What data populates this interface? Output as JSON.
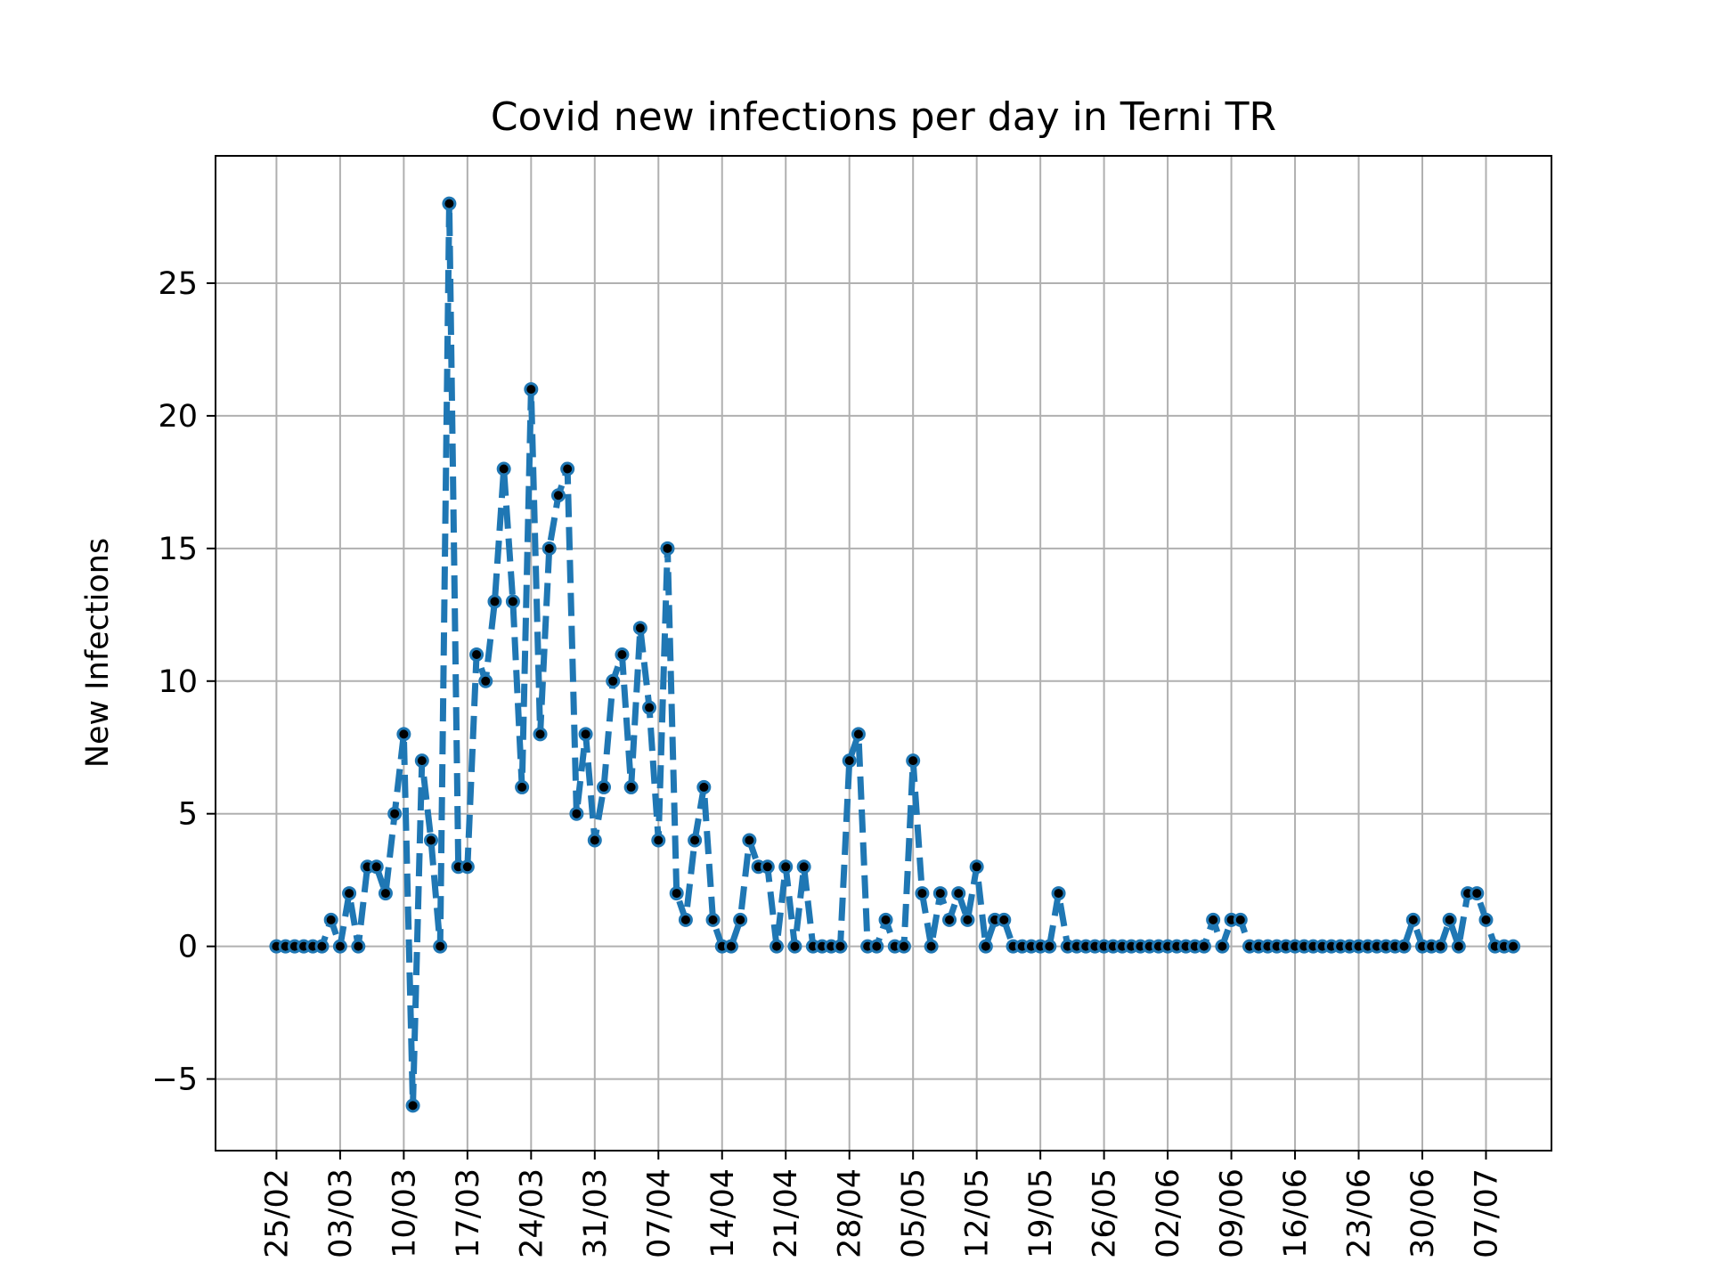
{
  "chart_data": {
    "type": "line",
    "title": "Covid new infections per day in Terni TR",
    "xlabel": "",
    "ylabel": "New Infections",
    "ylim": [
      -7.7,
      29.8
    ],
    "yticks": [
      -5,
      0,
      5,
      10,
      15,
      20,
      25
    ],
    "ytick_labels": [
      "−5",
      "0",
      "5",
      "10",
      "15",
      "20",
      "25"
    ],
    "xtick_labels": [
      "25/02",
      "03/03",
      "10/03",
      "17/03",
      "24/03",
      "31/03",
      "07/04",
      "14/04",
      "21/04",
      "28/04",
      "05/05",
      "12/05",
      "19/05",
      "26/05",
      "02/06",
      "09/06",
      "16/06",
      "23/06",
      "30/06",
      "07/07"
    ],
    "xtick_day_index": [
      0,
      7,
      14,
      21,
      28,
      35,
      42,
      49,
      56,
      63,
      70,
      77,
      84,
      91,
      98,
      105,
      112,
      119,
      126,
      133
    ],
    "x_range_days": [
      -6.7,
      140.2
    ],
    "grid": true,
    "series": [
      {
        "name": "Terni TR",
        "color": "#1f77b4",
        "marker_color": "#000000",
        "linestyle": "dashed",
        "start_date": "25/02",
        "values": [
          0,
          0,
          0,
          0,
          0,
          0,
          1,
          0,
          2,
          0,
          3,
          3,
          2,
          5,
          8,
          -6,
          7,
          4,
          0,
          28,
          3,
          3,
          11,
          10,
          13,
          18,
          13,
          6,
          21,
          8,
          15,
          17,
          18,
          5,
          8,
          4,
          6,
          10,
          11,
          6,
          12,
          9,
          4,
          15,
          2,
          1,
          4,
          6,
          1,
          0,
          0,
          1,
          4,
          3,
          3,
          0,
          3,
          0,
          3,
          0,
          0,
          0,
          0,
          7,
          8,
          0,
          0,
          1,
          0,
          0,
          7,
          2,
          0,
          2,
          1,
          2,
          1,
          3,
          0,
          1,
          1,
          0,
          0,
          0,
          0,
          0,
          2,
          0,
          0,
          0,
          0,
          0,
          0,
          0,
          0,
          0,
          0,
          0,
          0,
          0,
          0,
          0,
          0,
          1,
          0,
          1,
          1,
          0,
          0,
          0,
          0,
          0,
          0,
          0,
          0,
          0,
          0,
          0,
          0,
          0,
          0,
          0,
          0,
          0,
          0,
          1,
          0,
          0,
          0,
          1,
          0,
          2,
          2,
          1,
          0,
          0,
          0
        ]
      }
    ]
  }
}
